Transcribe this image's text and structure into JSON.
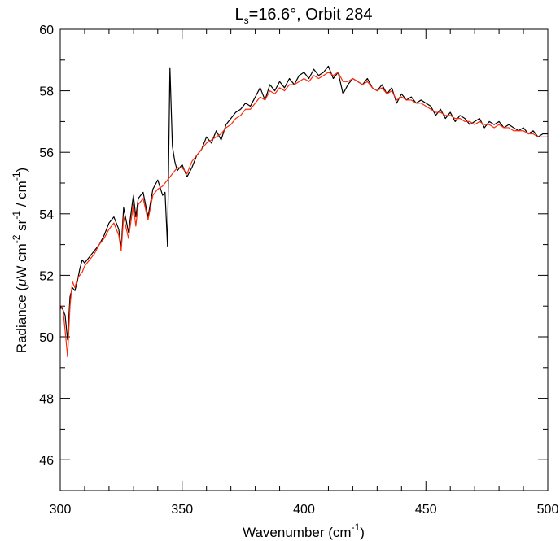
{
  "chart_data": {
    "type": "line",
    "title": {
      "prefix": "L",
      "subscript": "s",
      "rest": "=16.6°, Orbit 284"
    },
    "xlabel": {
      "text": "Wavenumber (cm",
      "superscript": "-1",
      "close": ")"
    },
    "ylabel": {
      "part1": "Radiance (",
      "mu": "μ",
      "part2": "W cm",
      "sup1": "-2",
      "part3": " sr",
      "sup2": "-1",
      "part4": " / cm",
      "sup3": "-1",
      "part5": ")"
    },
    "xlim": [
      300,
      500
    ],
    "ylim": [
      45,
      60
    ],
    "x_ticks": [
      300,
      350,
      400,
      450,
      500
    ],
    "y_ticks": [
      46,
      48,
      50,
      52,
      54,
      56,
      58,
      60
    ],
    "x_minor_step": 10,
    "y_minor_step": 1,
    "grid": false,
    "series": [
      {
        "color": "#000000",
        "x": [
          300,
          301,
          302,
          303,
          304,
          305,
          306,
          307,
          308,
          309,
          310,
          312,
          314,
          316,
          318,
          320,
          322,
          324,
          325,
          326,
          328,
          330,
          331,
          332,
          334,
          336,
          338,
          340,
          342,
          343,
          344,
          345,
          346,
          347,
          348,
          350,
          352,
          354,
          356,
          358,
          360,
          362,
          364,
          366,
          368,
          370,
          372,
          374,
          376,
          378,
          380,
          382,
          384,
          386,
          388,
          390,
          392,
          394,
          396,
          398,
          400,
          402,
          404,
          406,
          408,
          410,
          412,
          414,
          416,
          418,
          420,
          422,
          424,
          426,
          428,
          430,
          432,
          434,
          436,
          438,
          440,
          442,
          444,
          446,
          448,
          450,
          452,
          454,
          456,
          458,
          460,
          462,
          464,
          466,
          468,
          470,
          472,
          474,
          476,
          478,
          480,
          482,
          484,
          486,
          488,
          490,
          492,
          494,
          496,
          498,
          500
        ],
        "values": [
          51.0,
          50.9,
          50.7,
          49.9,
          51.3,
          51.6,
          51.5,
          51.8,
          52.2,
          52.5,
          52.4,
          52.6,
          52.8,
          53.0,
          53.3,
          53.7,
          53.9,
          53.5,
          52.9,
          54.2,
          53.4,
          54.6,
          53.9,
          54.5,
          54.7,
          53.9,
          54.8,
          55.1,
          54.6,
          54.7,
          52.95,
          58.75,
          56.2,
          55.7,
          55.4,
          55.6,
          55.2,
          55.5,
          55.9,
          56.1,
          56.5,
          56.3,
          56.7,
          56.4,
          56.9,
          57.1,
          57.3,
          57.4,
          57.6,
          57.5,
          57.8,
          58.1,
          57.7,
          58.2,
          58.0,
          58.3,
          58.1,
          58.4,
          58.2,
          58.5,
          58.6,
          58.4,
          58.7,
          58.5,
          58.6,
          58.8,
          58.4,
          58.6,
          57.9,
          58.2,
          58.4,
          58.3,
          58.2,
          58.4,
          58.1,
          58.0,
          58.2,
          57.9,
          58.1,
          57.6,
          57.9,
          57.7,
          57.8,
          57.6,
          57.7,
          57.6,
          57.5,
          57.2,
          57.4,
          57.1,
          57.3,
          57.0,
          57.2,
          57.1,
          56.9,
          57.0,
          57.1,
          56.8,
          57.0,
          56.9,
          57.0,
          56.8,
          56.9,
          56.8,
          56.7,
          56.8,
          56.6,
          56.7,
          56.5,
          56.6,
          56.6
        ]
      },
      {
        "color": "#ff2a0a",
        "x": [
          300,
          301,
          302,
          303,
          304,
          305,
          306,
          307,
          308,
          309,
          310,
          312,
          314,
          316,
          318,
          320,
          322,
          324,
          325,
          326,
          328,
          330,
          331,
          332,
          334,
          336,
          338,
          340,
          342,
          343,
          344,
          345,
          346,
          347,
          348,
          350,
          352,
          354,
          356,
          358,
          360,
          362,
          364,
          366,
          368,
          370,
          372,
          374,
          376,
          378,
          380,
          382,
          384,
          386,
          388,
          390,
          392,
          394,
          396,
          398,
          400,
          402,
          404,
          406,
          408,
          410,
          412,
          414,
          416,
          418,
          420,
          422,
          424,
          426,
          428,
          430,
          432,
          434,
          436,
          438,
          440,
          442,
          444,
          446,
          448,
          450,
          452,
          454,
          456,
          458,
          460,
          462,
          464,
          466,
          468,
          470,
          472,
          474,
          476,
          478,
          480,
          482,
          484,
          486,
          488,
          490,
          492,
          494,
          496,
          498,
          500
        ],
        "values": [
          50.9,
          51.0,
          50.2,
          49.35,
          51.0,
          51.8,
          51.6,
          51.9,
          52.0,
          52.1,
          52.3,
          52.5,
          52.7,
          53.0,
          53.2,
          53.5,
          53.7,
          53.3,
          52.8,
          53.9,
          53.2,
          54.3,
          53.6,
          54.3,
          54.5,
          53.8,
          54.6,
          54.8,
          54.9,
          55.0,
          55.1,
          55.2,
          55.3,
          55.4,
          55.5,
          55.5,
          55.3,
          55.7,
          55.9,
          56.1,
          56.3,
          56.4,
          56.5,
          56.6,
          56.8,
          56.9,
          57.1,
          57.2,
          57.4,
          57.4,
          57.6,
          57.8,
          57.7,
          58.0,
          57.9,
          58.1,
          58.0,
          58.2,
          58.2,
          58.3,
          58.4,
          58.3,
          58.5,
          58.4,
          58.5,
          58.6,
          58.5,
          58.6,
          58.3,
          58.3,
          58.4,
          58.3,
          58.2,
          58.3,
          58.1,
          58.0,
          58.1,
          57.9,
          58.0,
          57.7,
          57.8,
          57.7,
          57.7,
          57.6,
          57.6,
          57.5,
          57.4,
          57.3,
          57.3,
          57.2,
          57.2,
          57.1,
          57.1,
          57.0,
          57.0,
          56.9,
          57.0,
          56.9,
          56.9,
          56.8,
          56.9,
          56.8,
          56.8,
          56.7,
          56.7,
          56.7,
          56.6,
          56.6,
          56.5,
          56.5,
          56.5
        ]
      }
    ]
  }
}
